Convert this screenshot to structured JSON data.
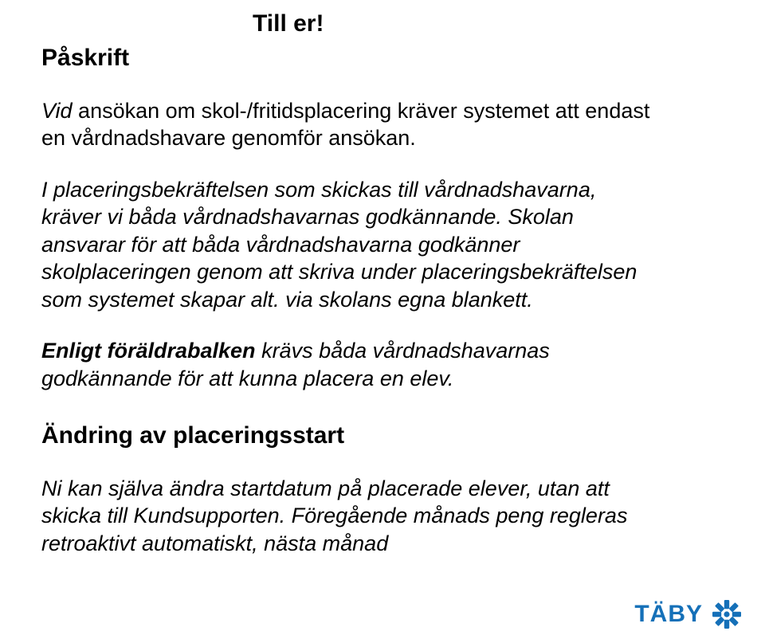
{
  "title": "Till er!",
  "heading1": "Påskrift",
  "p1": [
    {
      "style": "italic",
      "text": "Vid "
    },
    {
      "style": "normal",
      "text": " ansökan om skol-/fritidsplacering kräver systemet att endast en vårdnadshavare genomför ansökan."
    }
  ],
  "p2": [
    {
      "style": "italic",
      "text": "I placeringsbekräftelsen som skickas till vårdnadshavarna, kräver vi båda vårdnadshavarnas godkännande. Skolan ansvarar för att båda vårdnadshavarna godkänner skolplaceringen genom att skriva under placeringsbekräftelsen som systemet skapar alt. via skolans egna blankett."
    }
  ],
  "p3": [
    {
      "style": "bolditalic",
      "text": "Enligt föräldrabalken"
    },
    {
      "style": "italic",
      "text": " krävs båda vårdnadshavarnas godkännande för att kunna placera en elev."
    }
  ],
  "heading2": "Ändring av placeringsstart",
  "p4": [
    {
      "style": "italic",
      "text": "Ni kan själva ändra startdatum på placerade elever, utan att skicka till Kundsupporten. Föregående månads peng regleras retroaktivt automatiskt, nästa månad"
    }
  ],
  "logo": {
    "text": "TÄBY",
    "text_color": "#1570b8",
    "mark_color": "#1570b8"
  },
  "colors": {
    "background": "#ffffff",
    "text": "#000000"
  }
}
